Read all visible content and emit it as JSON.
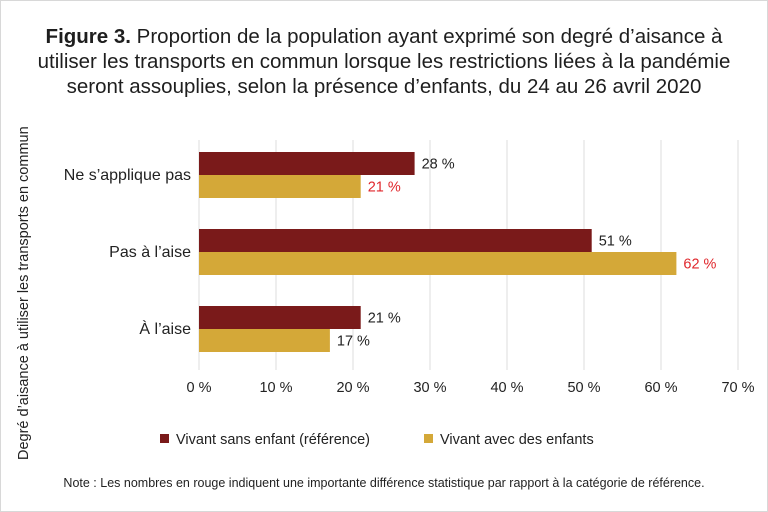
{
  "title_bold": "Figure 3.",
  "title_rest": " Proportion de la population ayant exprimé son degré d’aisance à utiliser les transports en commun lorsque les restrictions liées à la pandémie seront assouplies, selon la présence d’enfants, du 24 au 26 avril 2020",
  "note": "Note : Les nombres en rouge indiquent une importante différence statistique par rapport à la catégorie de référence.",
  "chart_data": {
    "type": "bar",
    "orientation": "horizontal",
    "ylabel": "Degré d’aisance à utiliser les transports en commun",
    "xlabel": "",
    "categories": [
      "Ne s’applique pas",
      "Pas à l’aise",
      "À l’aise"
    ],
    "series": [
      {
        "name": "Vivant sans enfant (référence)",
        "color": "#7a1a1a",
        "values": [
          28,
          51,
          21
        ],
        "labels": [
          "28 %",
          "51 %",
          "21 %"
        ],
        "label_colors": [
          "#222222",
          "#222222",
          "#222222"
        ]
      },
      {
        "name": "Vivant avec des enfants",
        "color": "#d4a838",
        "values": [
          21,
          62,
          17
        ],
        "labels": [
          "21 %",
          "62 %",
          "17 %"
        ],
        "label_colors": [
          "#e0262b",
          "#e0262b",
          "#222222"
        ]
      }
    ],
    "xlim": [
      0,
      70
    ],
    "xticks": [
      0,
      10,
      20,
      30,
      40,
      50,
      60,
      70
    ],
    "xtick_labels": [
      "0 %",
      "10 %",
      "20 %",
      "30 %",
      "40 %",
      "50 %",
      "60 %",
      "70 %"
    ],
    "grid": true,
    "legend_position": "bottom"
  }
}
